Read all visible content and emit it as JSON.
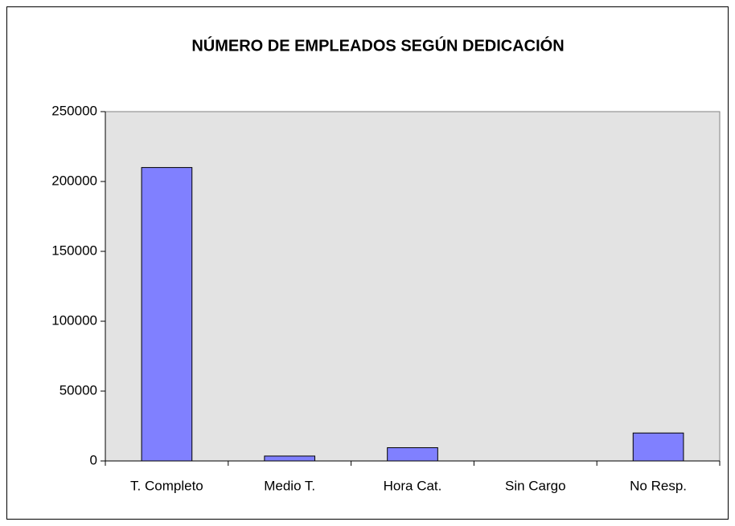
{
  "chart_data": {
    "type": "bar",
    "title": "NÚMERO DE EMPLEADOS SEGÚN DEDICACIÓN",
    "categories": [
      "T. Completo",
      "Medio T.",
      "Hora Cat.",
      "Sin Cargo",
      "No Resp."
    ],
    "values": [
      210000,
      3500,
      9500,
      0,
      20000
    ],
    "color": "#8080ff",
    "ylim": [
      0,
      250000
    ],
    "yticks": [
      0,
      50000,
      100000,
      150000,
      200000,
      250000
    ],
    "grid": false
  }
}
